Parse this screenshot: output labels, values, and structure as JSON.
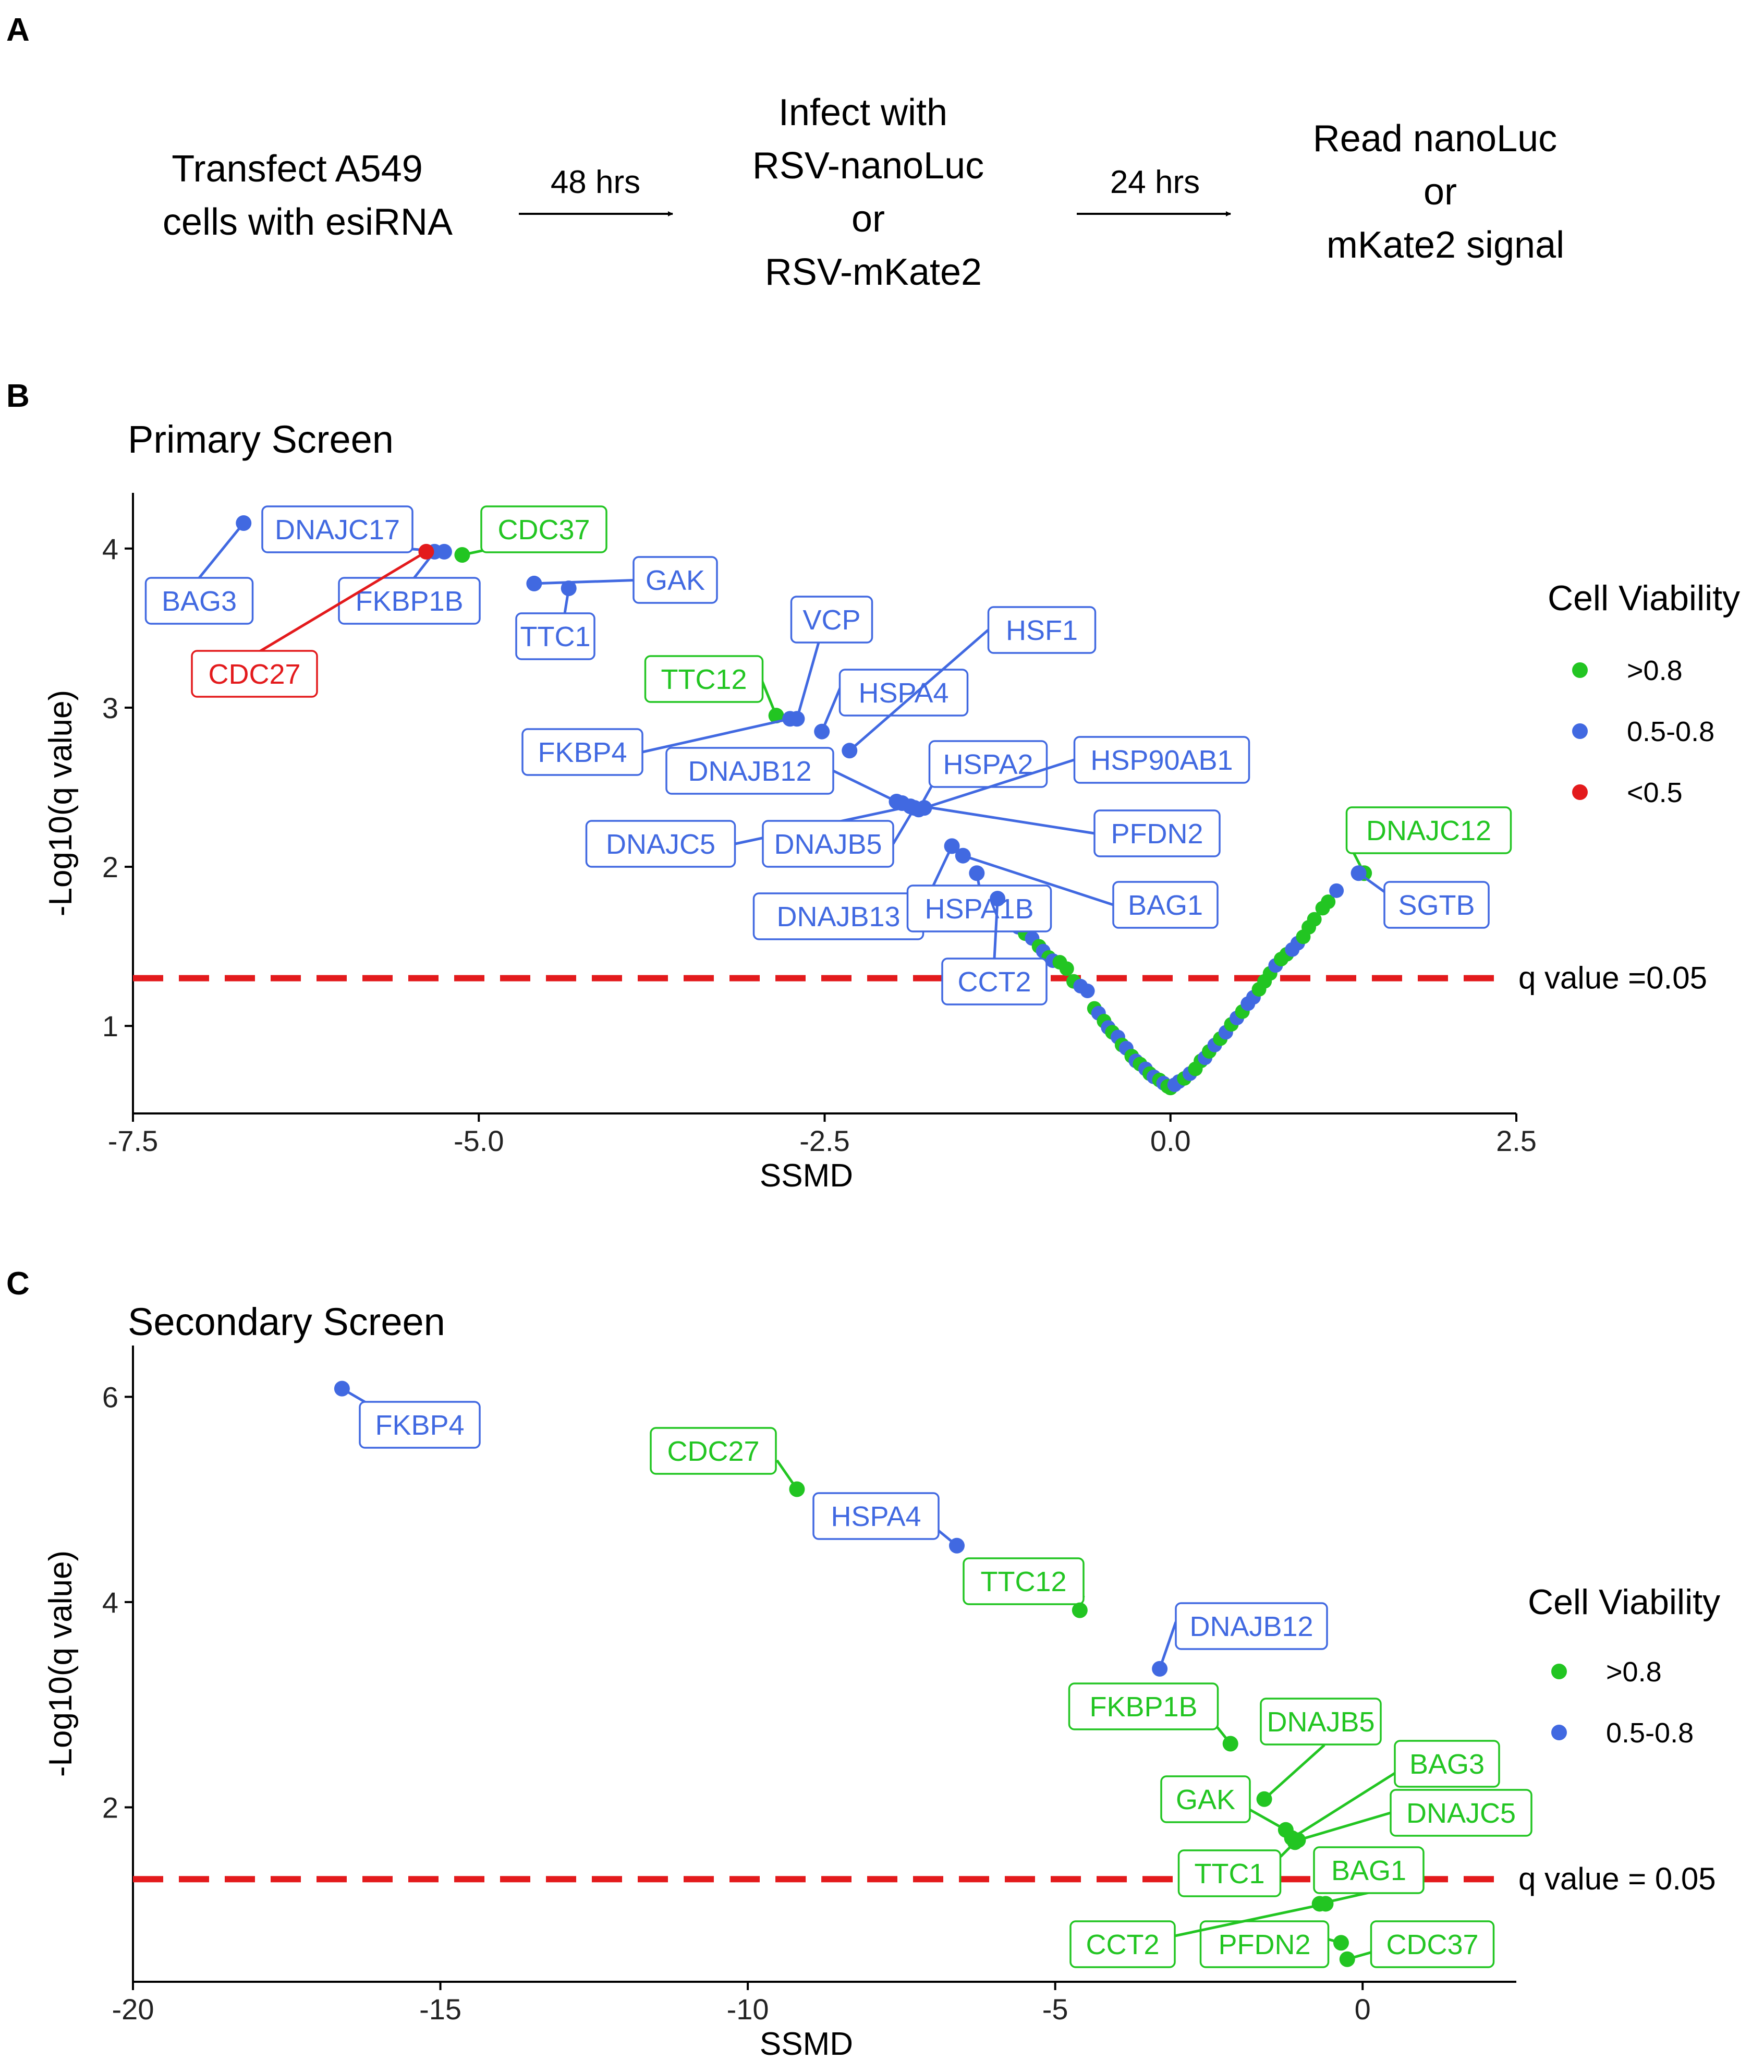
{
  "panel_a": {
    "letter": "A",
    "steps": [
      [
        "Transfect A549",
        "cells with esiRNA"
      ],
      [
        "Infect with",
        "RSV-nanoLuc",
        "or",
        "RSV-mKate2"
      ],
      [
        "Read nanoLuc",
        "or",
        "mKate2 signal"
      ]
    ],
    "arrows": [
      "48 hrs",
      "24 hrs"
    ]
  },
  "colors": {
    ">0.8": "#22c522",
    "0.5-0.8": "#4169e1",
    "<0.5": "#e31a1c",
    "threshold": "#e31a1c"
  },
  "chart_data": [
    {
      "panel": "B",
      "type": "scatter",
      "title": "Primary Screen",
      "xlabel": "SSMD",
      "ylabel": "-Log10(q value)",
      "xlim": [
        -7.5,
        2.5
      ],
      "ylim": [
        0.45,
        4.35
      ],
      "xticks": [
        -7.5,
        -5.0,
        -2.5,
        0.0,
        2.5
      ],
      "xtick_labels": [
        "-7.5",
        "-5.0",
        "-2.5",
        "0.0",
        "2.5"
      ],
      "yticks": [
        1,
        2,
        3,
        4
      ],
      "ytick_labels": [
        "1",
        "2",
        "3",
        "4"
      ],
      "legend": {
        "title": "Cell Viability",
        "entries": [
          ">0.8",
          "0.5-0.8",
          "<0.5"
        ],
        "position": "right"
      },
      "threshold": {
        "y": 1.3,
        "label": "q value =0.05"
      },
      "labeled_points": [
        {
          "label": "BAG3",
          "x": -6.7,
          "y": 4.16,
          "v": "0.5-0.8"
        },
        {
          "label": "DNAJC17",
          "x": -5.25,
          "y": 3.98,
          "v": "0.5-0.8"
        },
        {
          "label": "FKBP1B",
          "x": -5.32,
          "y": 3.98,
          "v": "0.5-0.8"
        },
        {
          "label": "CDC27",
          "x": -5.38,
          "y": 3.98,
          "v": "<0.5"
        },
        {
          "label": "CDC37",
          "x": -5.12,
          "y": 3.96,
          "v": ">0.8"
        },
        {
          "label": "GAK",
          "x": -4.6,
          "y": 3.78,
          "v": "0.5-0.8"
        },
        {
          "label": "TTC1",
          "x": -4.35,
          "y": 3.75,
          "v": "0.5-0.8"
        },
        {
          "label": "TTC12",
          "x": -2.85,
          "y": 2.95,
          "v": ">0.8"
        },
        {
          "label": "VCP",
          "x": -2.7,
          "y": 2.93,
          "v": "0.5-0.8"
        },
        {
          "label": "FKBP4",
          "x": -2.75,
          "y": 2.93,
          "v": "0.5-0.8"
        },
        {
          "label": "HSPA4",
          "x": -2.52,
          "y": 2.85,
          "v": "0.5-0.8"
        },
        {
          "label": "HSF1",
          "x": -2.32,
          "y": 2.73,
          "v": "0.5-0.8"
        },
        {
          "label": "DNAJB12",
          "x": -1.98,
          "y": 2.41,
          "v": "0.5-0.8"
        },
        {
          "label": "HSPA2",
          "x": -1.82,
          "y": 2.36,
          "v": "0.5-0.8"
        },
        {
          "label": "HSP90AB1",
          "x": -1.78,
          "y": 2.37,
          "v": "0.5-0.8"
        },
        {
          "label": "PFDN2",
          "x": -1.94,
          "y": 2.4,
          "v": "0.5-0.8"
        },
        {
          "label": "DNAJC5",
          "x": -1.88,
          "y": 2.38,
          "v": "0.5-0.8"
        },
        {
          "label": "DNAJB5",
          "x": -1.85,
          "y": 2.37,
          "v": "0.5-0.8"
        },
        {
          "label": "DNAJB13",
          "x": -1.58,
          "y": 2.13,
          "v": "0.5-0.8"
        },
        {
          "label": "BAG1",
          "x": -1.5,
          "y": 2.07,
          "v": "0.5-0.8"
        },
        {
          "label": "HSPA1B",
          "x": -1.4,
          "y": 1.96,
          "v": "0.5-0.8"
        },
        {
          "label": "CCT2",
          "x": -1.25,
          "y": 1.8,
          "v": "0.5-0.8"
        },
        {
          "label": "DNAJC12",
          "x": 1.4,
          "y": 1.96,
          "v": ">0.8"
        },
        {
          "label": "SGTB",
          "x": 1.36,
          "y": 1.96,
          "v": "0.5-0.8"
        }
      ],
      "background_points": [
        [
          -1.2,
          1.75,
          "0.5-0.8"
        ],
        [
          -1.15,
          1.68,
          ">0.8"
        ],
        [
          -1.1,
          1.62,
          "0.5-0.8"
        ],
        [
          -1.05,
          1.58,
          ">0.8"
        ],
        [
          -1.0,
          1.55,
          "0.5-0.8"
        ],
        [
          -0.95,
          1.5,
          ">0.8"
        ],
        [
          -0.92,
          1.47,
          "0.5-0.8"
        ],
        [
          -0.88,
          1.43,
          ">0.8"
        ],
        [
          -0.85,
          1.41,
          "0.5-0.8"
        ],
        [
          -0.8,
          1.4,
          ">0.8"
        ],
        [
          -0.75,
          1.36,
          ">0.8"
        ],
        [
          -0.7,
          1.28,
          ">0.8"
        ],
        [
          -0.65,
          1.25,
          "0.5-0.8"
        ],
        [
          -0.6,
          1.22,
          "0.5-0.8"
        ],
        [
          -0.55,
          1.11,
          ">0.8"
        ],
        [
          -0.52,
          1.08,
          "0.5-0.8"
        ],
        [
          -0.48,
          1.03,
          ">0.8"
        ],
        [
          -0.45,
          0.99,
          "0.5-0.8"
        ],
        [
          -0.42,
          0.96,
          ">0.8"
        ],
        [
          -0.38,
          0.93,
          "0.5-0.8"
        ],
        [
          -0.35,
          0.88,
          ">0.8"
        ],
        [
          -0.32,
          0.86,
          "0.5-0.8"
        ],
        [
          -0.28,
          0.81,
          ">0.8"
        ],
        [
          -0.25,
          0.78,
          "0.5-0.8"
        ],
        [
          -0.22,
          0.76,
          ">0.8"
        ],
        [
          -0.18,
          0.73,
          "0.5-0.8"
        ],
        [
          -0.15,
          0.7,
          ">0.8"
        ],
        [
          -0.12,
          0.68,
          "0.5-0.8"
        ],
        [
          -0.08,
          0.66,
          ">0.8"
        ],
        [
          -0.05,
          0.64,
          "0.5-0.8"
        ],
        [
          -0.02,
          0.62,
          ">0.8"
        ],
        [
          0.0,
          0.61,
          ">0.8"
        ],
        [
          0.03,
          0.63,
          "0.5-0.8"
        ],
        [
          0.06,
          0.65,
          "0.5-0.8"
        ],
        [
          0.1,
          0.67,
          ">0.8"
        ],
        [
          0.14,
          0.7,
          "0.5-0.8"
        ],
        [
          0.18,
          0.73,
          ">0.8"
        ],
        [
          0.22,
          0.78,
          ">0.8"
        ],
        [
          0.25,
          0.8,
          "0.5-0.8"
        ],
        [
          0.28,
          0.84,
          ">0.8"
        ],
        [
          0.32,
          0.88,
          "0.5-0.8"
        ],
        [
          0.36,
          0.92,
          ">0.8"
        ],
        [
          0.4,
          0.96,
          "0.5-0.8"
        ],
        [
          0.44,
          1.01,
          ">0.8"
        ],
        [
          0.48,
          1.05,
          "0.5-0.8"
        ],
        [
          0.52,
          1.09,
          ">0.8"
        ],
        [
          0.56,
          1.14,
          "0.5-0.8"
        ],
        [
          0.6,
          1.18,
          "0.5-0.8"
        ],
        [
          0.64,
          1.23,
          ">0.8"
        ],
        [
          0.68,
          1.28,
          ">0.8"
        ],
        [
          0.72,
          1.33,
          ">0.8"
        ],
        [
          0.76,
          1.38,
          "0.5-0.8"
        ],
        [
          0.8,
          1.42,
          ">0.8"
        ],
        [
          0.84,
          1.45,
          ">0.8"
        ],
        [
          0.88,
          1.48,
          "0.5-0.8"
        ],
        [
          0.92,
          1.52,
          "0.5-0.8"
        ],
        [
          0.96,
          1.56,
          ">0.8"
        ],
        [
          1.0,
          1.62,
          ">0.8"
        ],
        [
          1.04,
          1.67,
          ">0.8"
        ],
        [
          1.1,
          1.74,
          ">0.8"
        ],
        [
          1.14,
          1.78,
          ">0.8"
        ],
        [
          1.2,
          1.85,
          "0.5-0.8"
        ]
      ]
    },
    {
      "panel": "C",
      "type": "scatter",
      "title": "Secondary Screen",
      "xlabel": "SSMD",
      "ylabel": "-Log10(q value)",
      "xlim": [
        -20,
        2.5
      ],
      "ylim": [
        0.3,
        6.5
      ],
      "xticks": [
        -20,
        -15,
        -10,
        -5,
        0
      ],
      "xtick_labels": [
        "-20",
        "-15",
        "-10",
        "-5",
        "0"
      ],
      "yticks": [
        2,
        4,
        6
      ],
      "ytick_labels": [
        "2",
        "4",
        "6"
      ],
      "legend": {
        "title": "Cell Viability",
        "entries": [
          ">0.8",
          "0.5-0.8"
        ],
        "position": "right"
      },
      "threshold": {
        "y": 1.3,
        "label": "q value = 0.05"
      },
      "labeled_points": [
        {
          "label": "FKBP4",
          "x": -16.6,
          "y": 6.08,
          "v": "0.5-0.8"
        },
        {
          "label": "CDC27",
          "x": -9.2,
          "y": 5.1,
          "v": ">0.8"
        },
        {
          "label": "HSPA4",
          "x": -6.6,
          "y": 4.55,
          "v": "0.5-0.8"
        },
        {
          "label": "TTC12",
          "x": -4.6,
          "y": 3.92,
          "v": ">0.8"
        },
        {
          "label": "DNAJB12",
          "x": -3.3,
          "y": 3.35,
          "v": "0.5-0.8"
        },
        {
          "label": "FKBP1B",
          "x": -2.15,
          "y": 2.62,
          "v": ">0.8"
        },
        {
          "label": "DNAJB5",
          "x": -1.6,
          "y": 2.08,
          "v": ">0.8"
        },
        {
          "label": "GAK",
          "x": -1.25,
          "y": 1.78,
          "v": ">0.8"
        },
        {
          "label": "BAG3",
          "x": -1.15,
          "y": 1.7,
          "v": ">0.8"
        },
        {
          "label": "DNAJC5",
          "x": -1.05,
          "y": 1.68,
          "v": ">0.8"
        },
        {
          "label": "TTC1",
          "x": -1.1,
          "y": 1.66,
          "v": ">0.8"
        },
        {
          "label": "BAG1",
          "x": -0.7,
          "y": 1.06,
          "v": ">0.8"
        },
        {
          "label": "PFDN2",
          "x": -0.35,
          "y": 0.68,
          "v": ">0.8"
        },
        {
          "label": "CCT2",
          "x": -0.6,
          "y": 1.06,
          "v": ">0.8"
        },
        {
          "label": "CDC37",
          "x": -0.25,
          "y": 0.52,
          "v": ">0.8"
        }
      ],
      "background_points": []
    }
  ]
}
